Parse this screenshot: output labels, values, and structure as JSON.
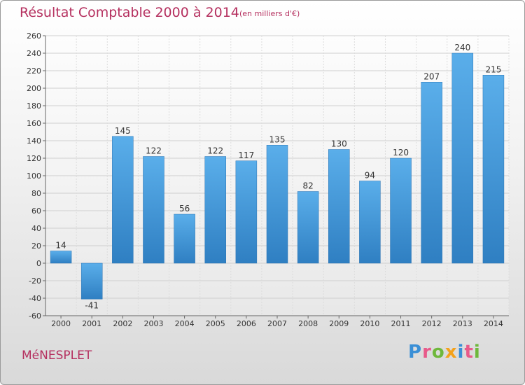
{
  "title": "Résultat Comptable 2000 à 2014",
  "subtitle": "(en milliers d'€)",
  "commune": "MéNESPLET",
  "logo": {
    "text": "Proxiti",
    "letters": [
      "P",
      "r",
      "o",
      "x",
      "i",
      "t",
      "i"
    ],
    "colors": [
      "#3a8fd6",
      "#e85a8a",
      "#6fb83c",
      "#f4a21b",
      "#3a8fd6",
      "#e85a8a",
      "#6fb83c"
    ]
  },
  "chart_data": {
    "type": "bar",
    "categories": [
      "2000",
      "2001",
      "2002",
      "2003",
      "2004",
      "2005",
      "2006",
      "2007",
      "2008",
      "2009",
      "2010",
      "2011",
      "2012",
      "2013",
      "2014"
    ],
    "values": [
      14,
      -41,
      145,
      122,
      56,
      122,
      117,
      135,
      82,
      130,
      94,
      120,
      207,
      240,
      215
    ],
    "ylim": [
      -60,
      260
    ],
    "yticks": [
      -60,
      -40,
      -20,
      0,
      20,
      40,
      60,
      80,
      100,
      120,
      140,
      160,
      180,
      200,
      220,
      240,
      260
    ],
    "grid": true,
    "bar_color_top": "#5aaeea",
    "bar_color_bottom": "#2f7fc2"
  }
}
